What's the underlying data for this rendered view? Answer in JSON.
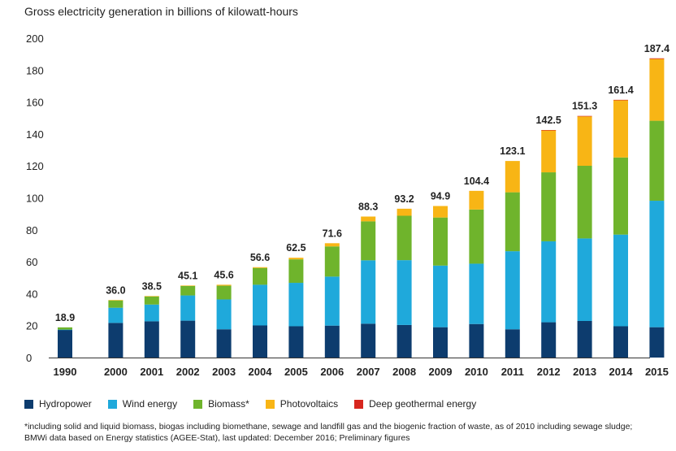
{
  "chart_data": {
    "type": "bar",
    "stacked": true,
    "title": "Gross electricity generation in billions of kilowatt-hours",
    "xlabel": "",
    "ylabel": "",
    "ylim": [
      0,
      200
    ],
    "yticks": [
      0,
      20,
      40,
      60,
      80,
      100,
      120,
      140,
      160,
      180,
      200
    ],
    "grid": false,
    "legend_position": "bottom",
    "categories": [
      "1990",
      "2000",
      "2001",
      "2002",
      "2003",
      "2004",
      "2005",
      "2006",
      "2007",
      "2008",
      "2009",
      "2010",
      "2011",
      "2012",
      "2013",
      "2014",
      "2015"
    ],
    "totals": [
      "18.9",
      "36.0",
      "38.5",
      "45.1",
      "45.6",
      "56.6",
      "62.5",
      "71.6",
      "88.3",
      "93.2",
      "94.9",
      "104.4",
      "123.1",
      "142.5",
      "151.3",
      "161.4",
      "187.4"
    ],
    "series": [
      {
        "name": "Hydropower",
        "color": "#0d3c6e",
        "values": [
          17.4,
          21.7,
          22.7,
          23.1,
          17.7,
          20.1,
          19.6,
          20.0,
          21.2,
          20.4,
          19.0,
          21.0,
          17.7,
          22.1,
          22.9,
          19.6,
          19.0
        ]
      },
      {
        "name": "Wind energy",
        "color": "#1fa9db",
        "values": [
          0.1,
          9.5,
          10.5,
          15.8,
          18.7,
          25.5,
          27.2,
          30.7,
          39.7,
          40.6,
          38.6,
          37.8,
          48.9,
          50.7,
          51.7,
          57.4,
          79.2
        ]
      },
      {
        "name": "Biomass*",
        "color": "#6fb42c",
        "values": [
          1.4,
          4.7,
          5.1,
          6.0,
          8.6,
          10.5,
          14.7,
          18.9,
          24.4,
          27.8,
          30.1,
          33.9,
          36.9,
          43.2,
          45.5,
          48.3,
          50.1
        ]
      },
      {
        "name": "Photovoltaics",
        "color": "#f8b515",
        "values": [
          0.0,
          0.1,
          0.2,
          0.2,
          0.6,
          0.5,
          1.0,
          2.0,
          3.0,
          4.4,
          7.2,
          11.7,
          19.6,
          26.4,
          31.0,
          36.0,
          38.7
        ]
      },
      {
        "name": "Deep geothermal energy",
        "color": "#d7261e",
        "values": [
          0.0,
          0.0,
          0.0,
          0.0,
          0.0,
          0.0,
          0.0,
          0.0,
          0.0,
          0.0,
          0.0,
          0.0,
          0.0,
          0.1,
          0.2,
          0.1,
          0.4
        ]
      }
    ]
  },
  "footnote": {
    "line1": "*including solid and liquid biomass, biogas including biomethane, sewage and landfill gas and the biogenic fraction of waste, as of 2010 including sewage sludge;",
    "line2": "BMWi data based on Energy statistics (AGEE-Stat), last updated: December 2016; Preliminary figures"
  }
}
